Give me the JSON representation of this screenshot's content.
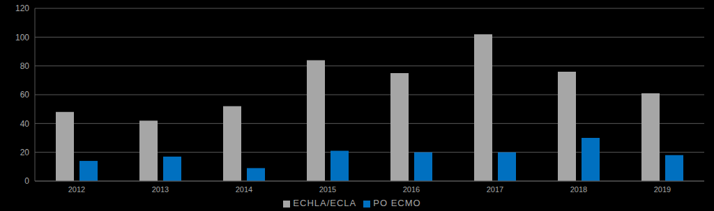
{
  "chart_data": {
    "type": "bar",
    "categories": [
      "2012",
      "2013",
      "2014",
      "2015",
      "2016",
      "2017",
      "2018",
      "2019"
    ],
    "series": [
      {
        "name": "ECHLA/ECLA",
        "color": "#a6a6a6",
        "values": [
          48,
          42,
          52,
          84,
          75,
          102,
          76,
          61
        ]
      },
      {
        "name": "PO ECMO",
        "color": "#0070c0",
        "values": [
          14,
          17,
          9,
          21,
          20,
          20,
          30,
          18
        ]
      }
    ],
    "ylim": [
      0,
      120
    ],
    "yticks": [
      0,
      20,
      40,
      60,
      80,
      100,
      120
    ],
    "grid": true,
    "legend": "bottom"
  }
}
